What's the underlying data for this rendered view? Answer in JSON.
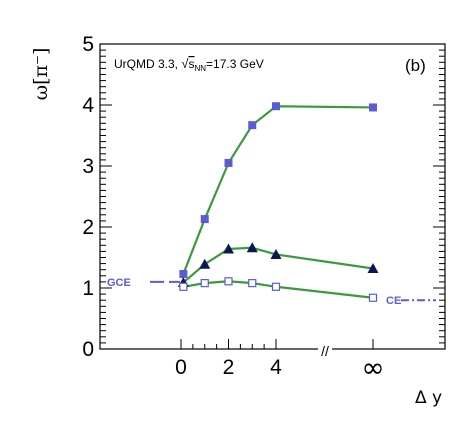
{
  "chart_data": {
    "type": "line",
    "ylabel": "ω[π⁻]",
    "xlabel": "Δ y",
    "model_label": {
      "prefix": "UrQMD 3.3, ",
      "sqrt": "√",
      "s": "s",
      "nn": "NN",
      "suffix": "=17.3 GeV"
    },
    "panel_label": "(b)",
    "ylim": [
      0,
      5
    ],
    "y_ticks": [
      "0",
      "1",
      "2",
      "3",
      "4",
      "5"
    ],
    "x_ticks": [
      "0",
      "2",
      "4"
    ],
    "x_break_label": "//",
    "x_infinity_label": "∞",
    "grid": false,
    "x": [
      0.1,
      1,
      2,
      3,
      4,
      "∞"
    ],
    "series": [
      {
        "marker": "filled-square",
        "color": "#5b5bd6",
        "values": [
          1.23,
          2.13,
          3.05,
          3.67,
          3.98,
          3.96
        ]
      },
      {
        "marker": "filled-triangle",
        "color": "#0b1654",
        "values": [
          1.09,
          1.39,
          1.64,
          1.66,
          1.55,
          1.32
        ]
      },
      {
        "marker": "open-square",
        "color": "#5b5bd6",
        "values": [
          1.02,
          1.08,
          1.11,
          1.08,
          1.02,
          0.84
        ]
      }
    ],
    "line_color": "#3c9a3c",
    "references": [
      {
        "label": "GCE",
        "value": 1.1,
        "style": "dashed",
        "color": "#5b5bd6"
      },
      {
        "label": "CE",
        "value": 0.8,
        "style": "dash-dot",
        "color": "#5b5bd6"
      }
    ]
  }
}
